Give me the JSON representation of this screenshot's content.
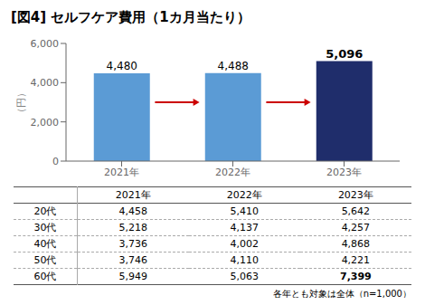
{
  "chart_data": {
    "type": "bar",
    "title": "[図4]  セルフケア費用（1カ月当たり）",
    "categories": [
      "2021年",
      "2022年",
      "2023年"
    ],
    "values": [
      4480,
      4488,
      5096
    ],
    "value_labels": [
      "4,480",
      "4,488",
      "5,096"
    ],
    "data_labels": true,
    "colors": [
      "#5B9BD5",
      "#5B9BD5",
      "#1F2D6B"
    ],
    "ylabel": "（円）",
    "ylim": [
      0,
      6000
    ],
    "yticks": [
      0,
      {
        "value": 2000,
        "label": "2,000"
      },
      {
        "value": 4000,
        "label": "4,000"
      },
      {
        "value": 6000,
        "label": "6,000"
      }
    ],
    "grid": false,
    "annotations": [
      {
        "type": "arrow",
        "from": "2021年",
        "to": "2022年",
        "y": 3000,
        "color": "#CC0000"
      },
      {
        "type": "arrow",
        "from": "2022年",
        "to": "2023年",
        "y": 3000,
        "color": "#CC0000"
      }
    ],
    "table": {
      "columns": [
        "2021年",
        "2022年",
        "2023年"
      ],
      "rows": [
        "20代",
        "30代",
        "40代",
        "50代",
        "60代"
      ],
      "cells": [
        [
          "4,458",
          "5,410",
          "5,642"
        ],
        [
          "5,218",
          "4,137",
          "4,257"
        ],
        [
          "3,736",
          "4,002",
          "4,868"
        ],
        [
          "3,746",
          "4,110",
          "4,221"
        ],
        [
          "5,949",
          "5,063",
          "7,399"
        ]
      ]
    },
    "footnote": "各年とも対象は全体（n=1,000）"
  }
}
